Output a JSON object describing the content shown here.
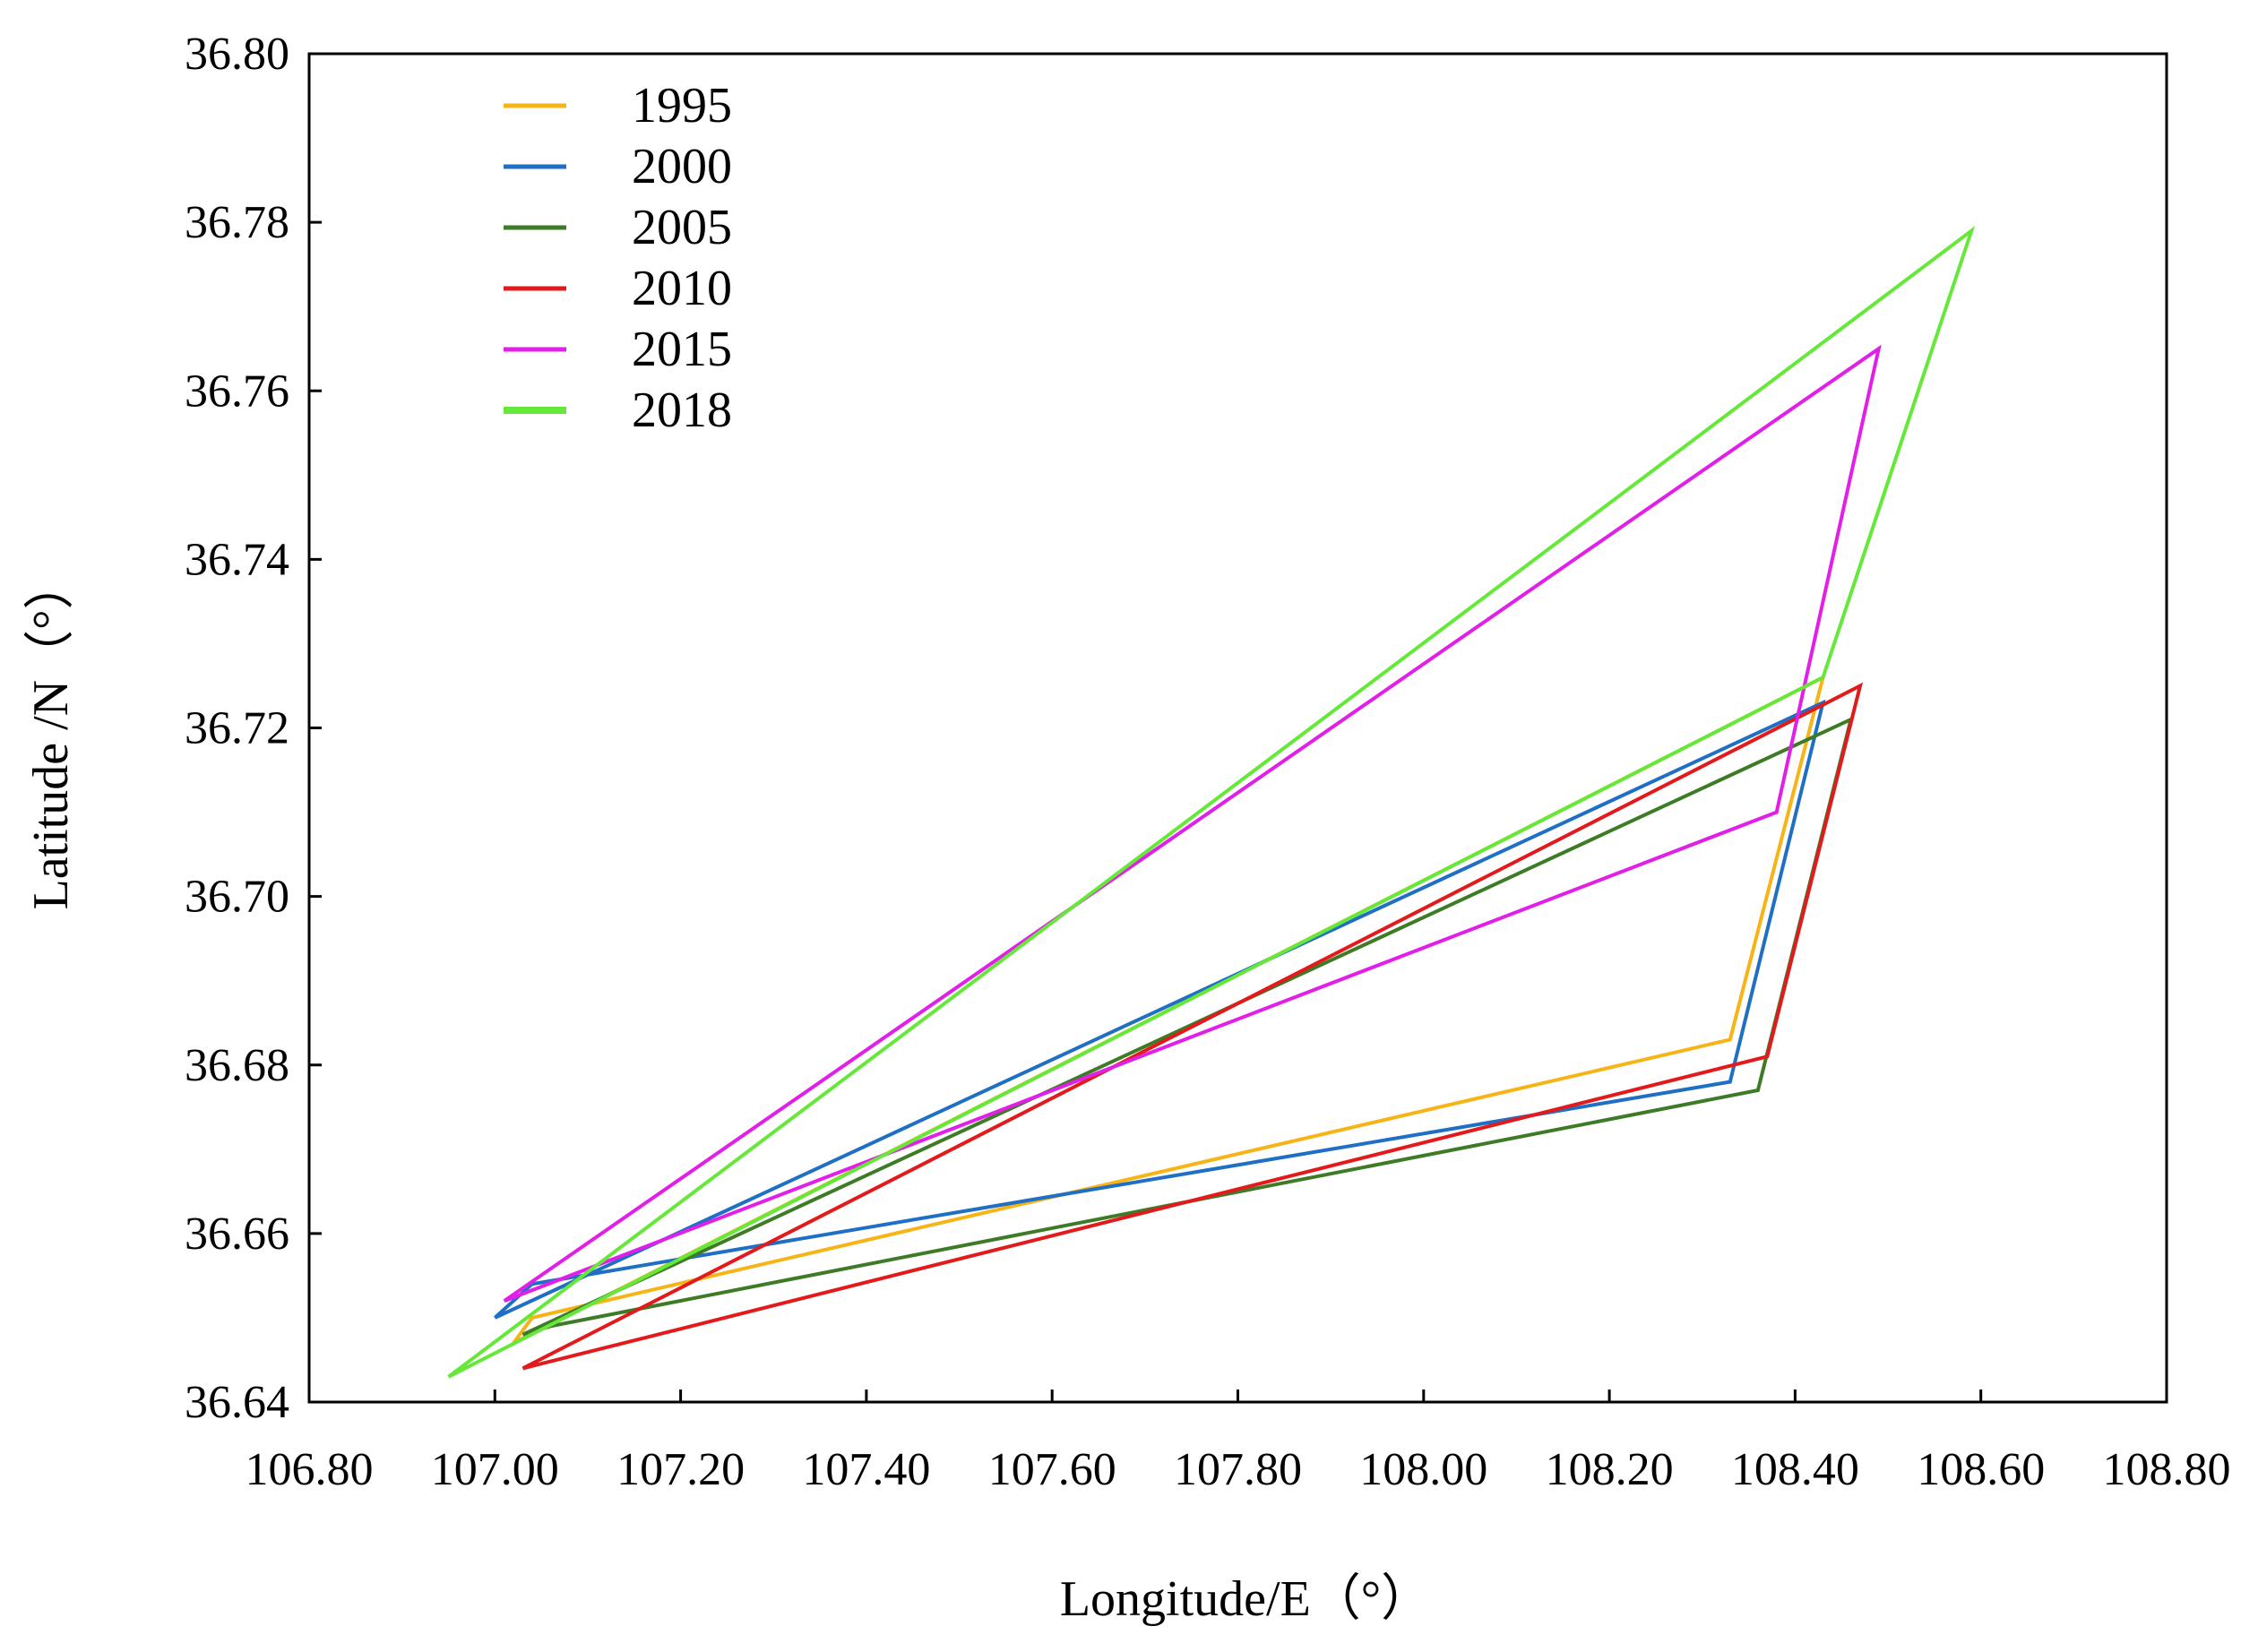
{
  "chart_data": {
    "type": "line",
    "title": "",
    "xlabel": "Longitude/E（°）",
    "ylabel": "Latitude /N（°）",
    "xlim": [
      106.8,
      108.8
    ],
    "ylim": [
      36.64,
      36.8
    ],
    "xticks": [
      "106.80",
      "107.00",
      "107.20",
      "107.40",
      "107.60",
      "107.80",
      "108.00",
      "108.20",
      "108.40",
      "108.60",
      "108.80"
    ],
    "yticks": [
      "36.64",
      "36.66",
      "36.68",
      "36.70",
      "36.72",
      "36.74",
      "36.76",
      "36.78",
      "36.80"
    ],
    "grid": false,
    "legend_position": "top-left",
    "series": [
      {
        "name": "1995",
        "color": "#F7B417",
        "points": [
          [
            107.02,
            36.647
          ],
          [
            107.04,
            36.65
          ],
          [
            108.33,
            36.683
          ],
          [
            108.43,
            36.726
          ],
          [
            107.02,
            36.647
          ]
        ]
      },
      {
        "name": "2000",
        "color": "#1F6FC4",
        "points": [
          [
            107.0,
            36.65
          ],
          [
            107.04,
            36.654
          ],
          [
            108.33,
            36.678
          ],
          [
            108.43,
            36.723
          ],
          [
            107.0,
            36.65
          ]
        ]
      },
      {
        "name": "2005",
        "color": "#3E7B27",
        "points": [
          [
            107.03,
            36.648
          ],
          [
            107.06,
            36.649
          ],
          [
            108.36,
            36.677
          ],
          [
            108.46,
            36.721
          ],
          [
            107.03,
            36.648
          ]
        ]
      },
      {
        "name": "2010",
        "color": "#E31A1C",
        "points": [
          [
            107.03,
            36.644
          ],
          [
            108.37,
            36.681
          ],
          [
            108.47,
            36.725
          ],
          [
            107.03,
            36.644
          ]
        ]
      },
      {
        "name": "2015",
        "color": "#E21FE8",
        "points": [
          [
            107.01,
            36.652
          ],
          [
            108.38,
            36.71
          ],
          [
            108.49,
            36.765
          ],
          [
            107.01,
            36.652
          ]
        ]
      },
      {
        "name": "2018",
        "color": "#66E83A",
        "points": [
          [
            106.95,
            36.643
          ],
          [
            108.43,
            36.726
          ],
          [
            108.59,
            36.779
          ],
          [
            106.95,
            36.643
          ]
        ]
      }
    ]
  }
}
